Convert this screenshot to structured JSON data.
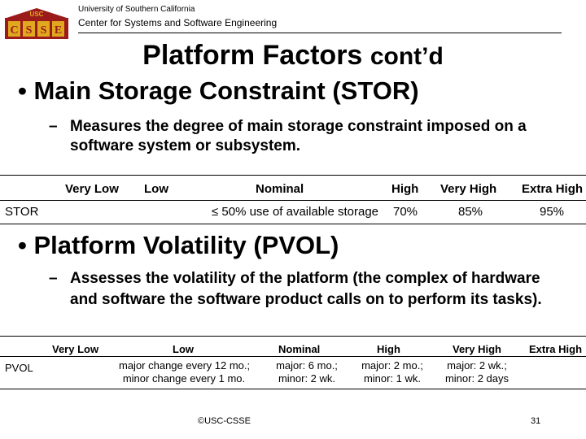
{
  "header": {
    "logo_top": "USC",
    "logo_letters": [
      "C",
      "S",
      "S",
      "E"
    ],
    "university": "University of Southern California",
    "center": "Center for Systems and Software Engineering"
  },
  "title": {
    "main": "Platform Factors",
    "suffix": "cont’d"
  },
  "stor": {
    "bullet": "• Main Storage Constraint (STOR)",
    "dash": "–",
    "desc": "Measures the degree of main storage constraint imposed on a software system or subsystem.",
    "table": {
      "headers": [
        "Very Low",
        "Low",
        "Nominal",
        "High",
        "Very High",
        "Extra High"
      ],
      "row_label": "STOR",
      "cells": [
        "≤ 50% use of available storage",
        "70%",
        "85%",
        "95%"
      ]
    }
  },
  "pvol": {
    "bullet": "• Platform Volatility (PVOL)",
    "dash": "–",
    "desc": "Assesses the volatility of the platform (the complex of hardware and software the software product calls on to perform its tasks).",
    "table": {
      "headers": [
        "Very Low",
        "Low",
        "Nominal",
        "High",
        "Very High",
        "Extra High"
      ],
      "row_label": "PVOL",
      "cells": [
        [
          "major change every 12 mo.;",
          "minor change every 1 mo."
        ],
        [
          "major: 6 mo.;",
          "minor: 2 wk."
        ],
        [
          "major: 2 mo.;",
          "minor: 1 wk."
        ],
        [
          "major: 2 wk.;",
          "minor: 2 days"
        ]
      ]
    }
  },
  "footer": {
    "copyright": "©USC-CSSE",
    "page": "31"
  },
  "colors": {
    "logo_red": "#9b1b1b",
    "logo_gold": "#e0a81e"
  }
}
